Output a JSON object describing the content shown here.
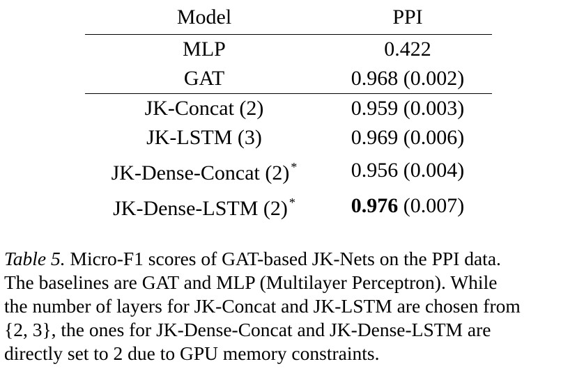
{
  "table": {
    "headers": [
      "Model",
      "PPI"
    ],
    "rows": [
      {
        "model": "MLP",
        "star": "",
        "ppi_main": "",
        "ppi_value": "0.422",
        "ppi_std": ""
      },
      {
        "model": "GAT",
        "star": "",
        "ppi_main": "",
        "ppi_value": "0.968",
        "ppi_std": " (0.002)"
      },
      {
        "model": "JK-Concat (2)",
        "star": "",
        "ppi_value": "0.959",
        "ppi_std": " (0.003)"
      },
      {
        "model": "JK-LSTM (3)",
        "star": "",
        "ppi_value": "0.969",
        "ppi_std": " (0.006)"
      },
      {
        "model": "JK-Dense-Concat (2)",
        "star": "*",
        "ppi_value": "0.956",
        "ppi_std": " (0.004)"
      },
      {
        "model": "JK-Dense-LSTM (2)",
        "star": "*",
        "ppi_value": "0.976",
        "ppi_std": " (0.007)"
      }
    ]
  },
  "caption": {
    "label": "Table 5.",
    "line1": " Micro-F1 scores of GAT-based JK-Nets on the PPI data.",
    "line2": "The baselines are GAT and MLP (Multilayer Perceptron). While",
    "line3": "the number of layers for JK-Concat and JK-LSTM are chosen from",
    "line4": "{2, 3}, the ones for JK-Dense-Concat and JK-Dense-LSTM are",
    "line5": "directly set to 2 due to GPU memory constraints."
  }
}
